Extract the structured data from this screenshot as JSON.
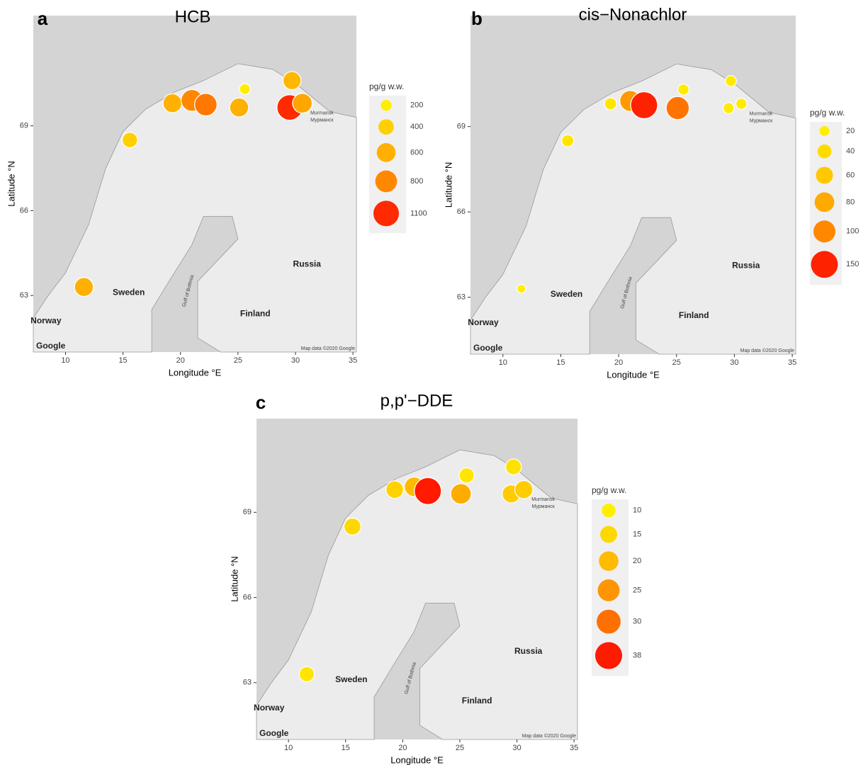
{
  "chart_data": [
    {
      "type": "scatter",
      "panel_label": "a",
      "title": "HCB",
      "xlabel": "Longitude °E",
      "ylabel": "Latitude °N",
      "x": [
        15.6,
        11.6,
        19.3,
        21.0,
        22.2,
        25.6,
        25.1,
        29.7,
        29.5,
        30.6
      ],
      "y": [
        68.5,
        63.3,
        69.8,
        69.9,
        69.75,
        70.3,
        69.65,
        70.6,
        69.65,
        69.8
      ],
      "sizes": [
        400,
        600,
        600,
        800,
        850,
        200,
        600,
        550,
        1100,
        650
      ],
      "xlim": [
        7.2,
        35.3
      ],
      "ylim": [
        61.0,
        72.9
      ],
      "xticks": [
        10,
        15,
        20,
        25,
        30,
        35
      ],
      "yticks": [
        63,
        66,
        69
      ],
      "legend": {
        "title": "pg/g w.w.",
        "values": [
          200,
          400,
          600,
          800,
          1100
        ],
        "colors": [
          "#ffee00",
          "#ffd000",
          "#ffb000",
          "#ff8800",
          "#ff2a00"
        ]
      },
      "annotations": [
        "Norway",
        "Sweden",
        "Finland",
        "Russia",
        "Murmansk",
        "Мурманск",
        "Gulf of Bothnia",
        "Google",
        "Map data ©2020 Google"
      ]
    },
    {
      "type": "scatter",
      "panel_label": "b",
      "title": "cis−Nonachlor",
      "xlabel": "Longitude °E",
      "ylabel": "Latitude °N",
      "x": [
        15.6,
        11.6,
        19.3,
        21.0,
        22.2,
        25.6,
        25.1,
        29.7,
        29.5,
        30.6
      ],
      "y": [
        68.5,
        63.3,
        69.8,
        69.9,
        69.75,
        70.3,
        69.65,
        70.6,
        69.65,
        69.8
      ],
      "sizes": [
        30,
        15,
        30,
        90,
        150,
        25,
        110,
        25,
        25,
        25
      ],
      "xlim": [
        7.2,
        35.3
      ],
      "ylim": [
        61.0,
        72.9
      ],
      "xticks": [
        10,
        15,
        20,
        25,
        30,
        35
      ],
      "yticks": [
        63,
        66,
        69
      ],
      "legend": {
        "title": "pg/g w.w.",
        "values": [
          20,
          40,
          60,
          80,
          100,
          150
        ],
        "colors": [
          "#ffee00",
          "#ffdc00",
          "#ffc800",
          "#ffaa00",
          "#ff8800",
          "#ff2200"
        ]
      },
      "annotations": [
        "Norway",
        "Sweden",
        "Finland",
        "Russia",
        "Murmansk",
        "Мурманск",
        "Gulf of Bothnia",
        "Google",
        "Map data ©2020 Google"
      ]
    },
    {
      "type": "scatter",
      "panel_label": "c",
      "title": "p,p'−DDE",
      "xlabel": "Longitude °E",
      "ylabel": "Latitude °N",
      "x": [
        15.6,
        11.6,
        19.3,
        21.0,
        22.2,
        25.6,
        25.1,
        29.7,
        29.5,
        30.6
      ],
      "y": [
        68.5,
        63.3,
        69.8,
        69.9,
        69.75,
        70.3,
        69.65,
        70.6,
        69.65,
        69.8
      ],
      "sizes": [
        15,
        12,
        16,
        20,
        38,
        12,
        22,
        13,
        17,
        17
      ],
      "xlim": [
        7.2,
        35.3
      ],
      "ylim": [
        61.0,
        72.3
      ],
      "xticks": [
        10,
        15,
        20,
        25,
        30,
        35
      ],
      "yticks": [
        63,
        66,
        69
      ],
      "legend": {
        "title": "pg/g w.w.",
        "values": [
          10,
          15,
          20,
          25,
          30,
          38
        ],
        "colors": [
          "#ffee00",
          "#ffd800",
          "#ffbb00",
          "#ff9500",
          "#ff7000",
          "#ff1a00"
        ]
      },
      "annotations": [
        "Norway",
        "Sweden",
        "Finland",
        "Russia",
        "Murmansk",
        "Мурманск",
        "Gulf of Bothnia",
        "Google",
        "Map data ©2020 Google"
      ]
    }
  ]
}
